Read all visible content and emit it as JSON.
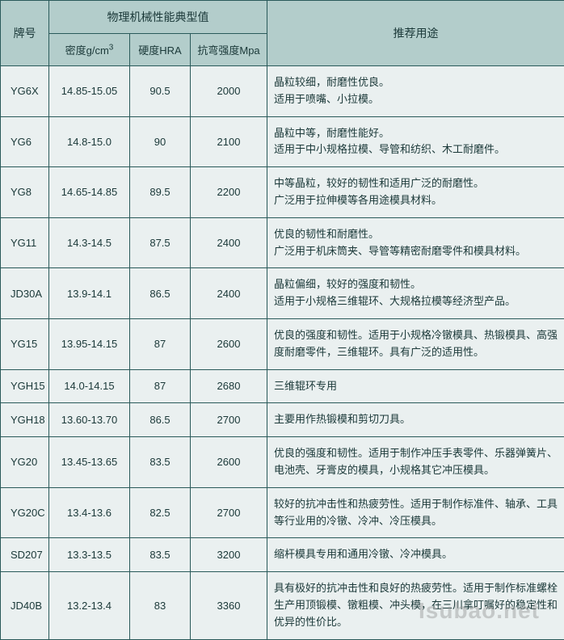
{
  "styling": {
    "header_bg": "#b3cdcb",
    "cell_bg": "#eaf0f0",
    "border_color": "#2a5a5a",
    "text_color": "#1a3838",
    "font_family": "Microsoft YaHei",
    "header_fontsize": 14,
    "body_fontsize": 13,
    "watermark_color": "rgba(150,150,150,0.45)",
    "watermark_fontsize": 28
  },
  "columns": {
    "grade": "牌号",
    "group": "物理机械性能典型值",
    "density": "密度g/cm",
    "density_sup": "3",
    "hardness": "硬度HRA",
    "strength": "抗弯强度Mpa",
    "usage": "推荐用途"
  },
  "col_widths": {
    "grade": 60,
    "density": 100,
    "hardness": 75,
    "strength": 95,
    "usage": 368
  },
  "rows": [
    {
      "grade": "YG6X",
      "density": "14.85-15.05",
      "hardness": "90.5",
      "strength": "2000",
      "usage": "晶粒较细，耐磨性优良。\n适用于喷嘴、小拉模。"
    },
    {
      "grade": "YG6",
      "density": "14.8-15.0",
      "hardness": "90",
      "strength": "2100",
      "usage": "晶粒中等，耐磨性能好。\n适用于中小规格拉模、导管和纺织、木工耐磨件。"
    },
    {
      "grade": "YG8",
      "density": "14.65-14.85",
      "hardness": "89.5",
      "strength": "2200",
      "usage": "中等晶粒，较好的韧性和适用广泛的耐磨性。\n广泛用于拉伸模等各用途模具材料。"
    },
    {
      "grade": "YG11",
      "density": "14.3-14.5",
      "hardness": "87.5",
      "strength": "2400",
      "usage": "优良的韧性和耐磨性。\n广泛用于机床筒夹、导管等精密耐磨零件和模具材料。"
    },
    {
      "grade": "JD30A",
      "density": "13.9-14.1",
      "hardness": "86.5",
      "strength": "2400",
      "usage": "晶粒偏细，较好的强度和韧性。\n适用于小规格三维辊环、大规格拉模等经济型产品。"
    },
    {
      "grade": "YG15",
      "density": "13.95-14.15",
      "hardness": "87",
      "strength": "2600",
      "usage": "优良的强度和韧性。适用于小规格冷镦模具、热锻模具、高强度耐磨零件，三维辊环。具有广泛的适用性。"
    },
    {
      "grade": "YGH15",
      "density": "14.0-14.15",
      "hardness": "87",
      "strength": "2680",
      "usage": "三维辊环专用"
    },
    {
      "grade": "YGH18",
      "density": "13.60-13.70",
      "hardness": "86.5",
      "strength": "2700",
      "usage": "主要用作热锻模和剪切刀具。"
    },
    {
      "grade": "YG20",
      "density": "13.45-13.65",
      "hardness": "83.5",
      "strength": "2600",
      "usage": "优良的强度和韧性。适用于制作冲压手表零件、乐器弹簧片、电池壳、牙膏皮的模具，小规格其它冲压模具。"
    },
    {
      "grade": "YG20C",
      "density": "13.4-13.6",
      "hardness": "82.5",
      "strength": "2700",
      "usage": "较好的抗冲击性和热疲劳性。适用于制作标准件、轴承、工具等行业用的冷镦、冷冲、冷压模具。"
    },
    {
      "grade": "SD207",
      "density": "13.3-13.5",
      "hardness": "83.5",
      "strength": "3200",
      "usage": "缩杆模具专用和通用冷镦、冷冲模具。"
    },
    {
      "grade": "JD40B",
      "density": "13.2-13.4",
      "hardness": "83",
      "strength": "3360",
      "usage": "具有极好的抗冲击性和良好的热疲劳性。适用于制作标准螺栓生产用顶锻模、镦粗模、冲头模，在三川拿叮嘱好的稳定性和优异的性价比。"
    }
  ],
  "watermark": "Isubao.net"
}
